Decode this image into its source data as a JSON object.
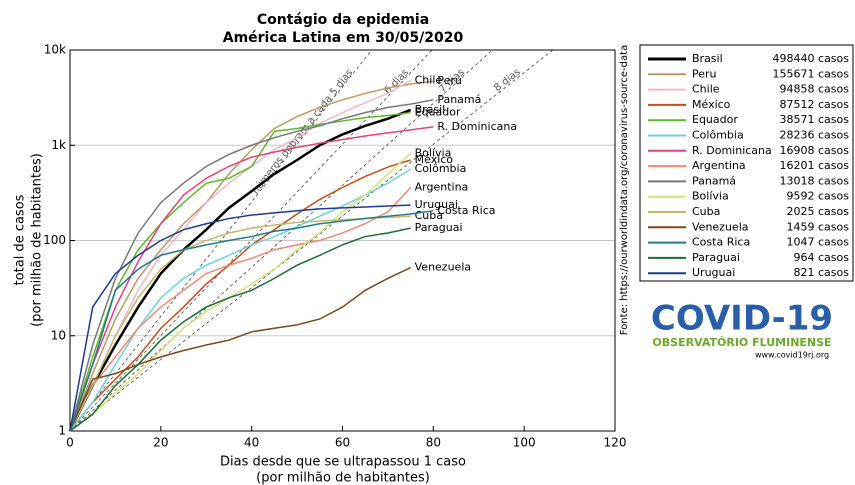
{
  "chart_data": {
    "type": "line",
    "title": "Contágio da epidemia",
    "subtitle": "América Latina em 30/05/2020",
    "x_label": [
      "Dias desde que se ultrapassou 1 caso",
      "(por milhão de habitantes)"
    ],
    "y_label": [
      "total de casos",
      "(por milhão de habitantes)"
    ],
    "source": "Fonte: https://ourworldindata.org/coronavirus-source-data",
    "log_y": true,
    "grid": true,
    "xlim": [
      0,
      120
    ],
    "xticks": [
      0,
      20,
      40,
      60,
      80,
      100,
      120
    ],
    "ylim": [
      1,
      10000
    ],
    "yticks": [
      1,
      10,
      100,
      {
        "value": 1000,
        "label": "1k"
      },
      {
        "value": 10000,
        "label": "10k"
      }
    ],
    "doubling_lines": [
      {
        "days": 5,
        "label": "números dobram a cada 5 dias"
      },
      {
        "days": 6,
        "label": "6 dias"
      },
      {
        "days": 7,
        "label": "7 dias"
      },
      {
        "days": 8,
        "label": "8 dias"
      }
    ],
    "x": [
      0,
      5,
      10,
      15,
      20,
      25,
      30,
      35,
      40,
      45,
      50,
      55,
      60,
      65,
      70,
      75,
      80
    ],
    "series": [
      {
        "name": "Brasil",
        "color": "#000000",
        "cases_label": "498440 casos",
        "values": [
          1,
          3,
          8,
          20,
          45,
          80,
          130,
          220,
          330,
          500,
          700,
          1000,
          1300,
          1600,
          1900,
          2350,
          null
        ]
      },
      {
        "name": "Peru",
        "color": "#b89a64",
        "cases_label": "155671 casos",
        "values": [
          1,
          4,
          15,
          40,
          80,
          150,
          250,
          500,
          900,
          1500,
          2000,
          2500,
          3000,
          3500,
          4000,
          4400,
          4700
        ]
      },
      {
        "name": "Chile",
        "color": "#f4b6c8",
        "cases_label": "94858 casos",
        "values": [
          1,
          3,
          10,
          30,
          70,
          130,
          250,
          400,
          600,
          900,
          1200,
          1700,
          2200,
          2800,
          3500,
          4800,
          null
        ]
      },
      {
        "name": "México",
        "color": "#c84b1e",
        "cases_label": "87512 casos",
        "values": [
          1,
          2,
          3.5,
          6,
          12,
          20,
          35,
          55,
          90,
          130,
          190,
          270,
          360,
          470,
          590,
          700,
          null
        ]
      },
      {
        "name": "Equador",
        "color": "#5db82a",
        "cases_label": "38571 casos",
        "values": [
          1,
          6,
          30,
          80,
          150,
          250,
          400,
          450,
          600,
          1400,
          1500,
          1650,
          1800,
          1950,
          2050,
          2200,
          null
        ]
      },
      {
        "name": "Colômbia",
        "color": "#6dd3d8",
        "cases_label": "28236 casos",
        "values": [
          1,
          2,
          5,
          12,
          25,
          40,
          55,
          70,
          90,
          110,
          140,
          180,
          230,
          300,
          400,
          560,
          null
        ]
      },
      {
        "name": "R. Dominicana",
        "color": "#e8407a",
        "cases_label": "16908 casos",
        "values": [
          1,
          5,
          20,
          60,
          150,
          300,
          450,
          600,
          750,
          850,
          950,
          1050,
          1150,
          1250,
          1350,
          1450,
          1560
        ]
      },
      {
        "name": "Argentina",
        "color": "#f08878",
        "cases_label": "16201 casos",
        "values": [
          1,
          3,
          6,
          12,
          20,
          30,
          45,
          55,
          65,
          80,
          90,
          100,
          120,
          150,
          200,
          360,
          null
        ]
      },
      {
        "name": "Panamá",
        "color": "#777777",
        "cases_label": "13018 casos",
        "values": [
          1,
          8,
          40,
          120,
          250,
          400,
          600,
          800,
          1000,
          1200,
          1400,
          1600,
          1900,
          2200,
          2500,
          2700,
          3000
        ]
      },
      {
        "name": "Bolívia",
        "color": "#d6e07a",
        "cases_label": "9592 casos",
        "values": [
          1,
          1.5,
          2.5,
          4,
          7,
          12,
          18,
          25,
          35,
          50,
          80,
          120,
          200,
          300,
          500,
          820,
          null
        ]
      },
      {
        "name": "Cuba",
        "color": "#c8b66a",
        "cases_label": "2025 casos",
        "values": [
          1,
          3,
          10,
          25,
          50,
          80,
          100,
          120,
          135,
          145,
          155,
          160,
          165,
          170,
          175,
          180,
          null
        ]
      },
      {
        "name": "Venezuela",
        "color": "#7a4a1e",
        "cases_label": "1459 casos",
        "values": [
          1,
          3.5,
          4,
          5,
          6,
          7,
          8,
          9,
          11,
          12,
          13,
          15,
          20,
          30,
          40,
          52,
          null
        ]
      },
      {
        "name": "Costa Rica",
        "color": "#1f7a8c",
        "cases_label": "1047 casos",
        "values": [
          1,
          5,
          30,
          50,
          70,
          80,
          90,
          100,
          110,
          125,
          135,
          150,
          160,
          170,
          180,
          190,
          205
        ]
      },
      {
        "name": "Paraguai",
        "color": "#1a6e32",
        "cases_label": "964 casos",
        "values": [
          1,
          1.5,
          3,
          5,
          9,
          14,
          20,
          25,
          30,
          40,
          55,
          70,
          90,
          110,
          120,
          135,
          null
        ]
      },
      {
        "name": "Uruguai",
        "color": "#1f3a8c",
        "cases_label": "821 casos",
        "values": [
          1,
          20,
          45,
          70,
          100,
          130,
          150,
          170,
          185,
          195,
          205,
          215,
          220,
          225,
          230,
          235,
          null
        ]
      }
    ]
  },
  "logo": {
    "title": "COVID-19",
    "subtitle": "OBSERVATÓRIO FLUMINENSE",
    "url": "www.covid19rj.org"
  }
}
